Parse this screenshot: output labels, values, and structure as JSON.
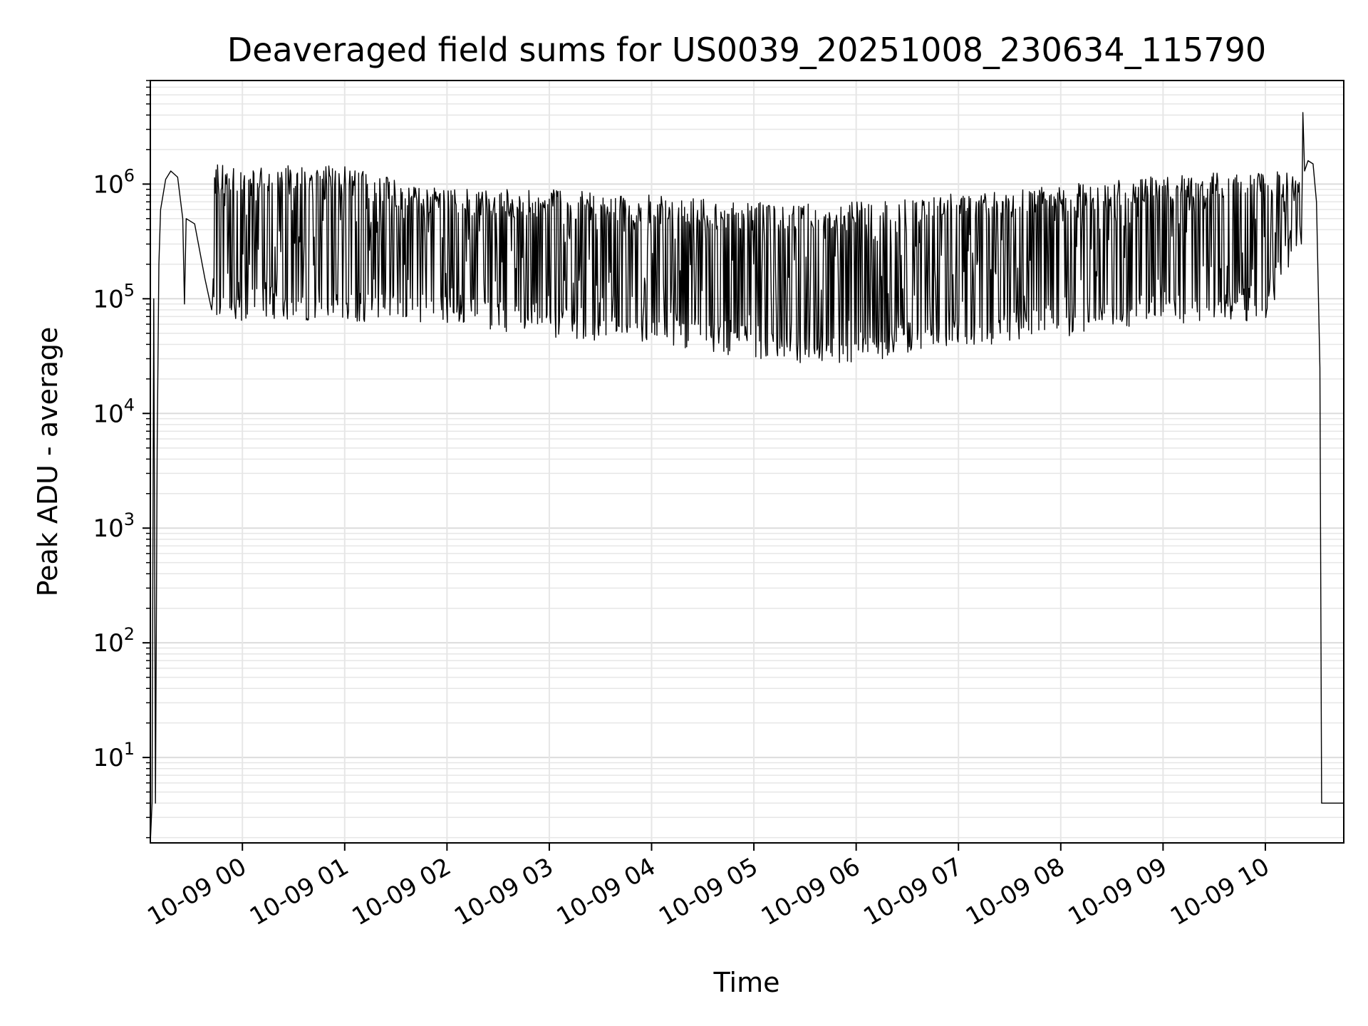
{
  "chart_data": {
    "type": "line",
    "title": "Deaveraged field sums for US0039_20251008_230634_115790",
    "xlabel": "Time",
    "ylabel": "Peak ADU - average",
    "yscale": "log",
    "ylim": [
      1.8,
      8000000
    ],
    "xlim": [
      "2025-10-08 23:06",
      "2025-10-09 10:46"
    ],
    "grid": true,
    "x_ticks": [
      {
        "label": "10-09 00",
        "time": "2025-10-09 00:00"
      },
      {
        "label": "10-09 01",
        "time": "2025-10-09 01:00"
      },
      {
        "label": "10-09 02",
        "time": "2025-10-09 02:00"
      },
      {
        "label": "10-09 03",
        "time": "2025-10-09 03:00"
      },
      {
        "label": "10-09 04",
        "time": "2025-10-09 04:00"
      },
      {
        "label": "10-09 05",
        "time": "2025-10-09 05:00"
      },
      {
        "label": "10-09 06",
        "time": "2025-10-09 06:00"
      },
      {
        "label": "10-09 07",
        "time": "2025-10-09 07:00"
      },
      {
        "label": "10-09 08",
        "time": "2025-10-09 08:00"
      },
      {
        "label": "10-09 09",
        "time": "2025-10-09 09:00"
      },
      {
        "label": "10-09 10",
        "time": "2025-10-09 10:00"
      }
    ],
    "y_ticks": [
      {
        "base": "10",
        "exp": "1",
        "value": 10
      },
      {
        "base": "10",
        "exp": "2",
        "value": 100
      },
      {
        "base": "10",
        "exp": "3",
        "value": 1000
      },
      {
        "base": "10",
        "exp": "4",
        "value": 10000
      },
      {
        "base": "10",
        "exp": "5",
        "value": 100000
      },
      {
        "base": "10",
        "exp": "6",
        "value": 1000000
      }
    ],
    "series": [
      {
        "color": "#000000",
        "envelope": [
          {
            "time": "2025-10-08 23:13",
            "high": 1000000,
            "low": 1000000
          },
          {
            "time": "2025-10-08 23:20",
            "high": 1300000,
            "low": 1100000
          },
          {
            "time": "2025-10-08 23:30",
            "high": 1200000,
            "low": 300000
          },
          {
            "time": "2025-10-08 23:45",
            "high": 1500000,
            "low": 60000
          },
          {
            "time": "2025-10-09 00:00",
            "high": 1400000,
            "low": 65000
          },
          {
            "time": "2025-10-09 00:30",
            "high": 1450000,
            "low": 65000
          },
          {
            "time": "2025-10-09 01:00",
            "high": 1450000,
            "low": 60000
          },
          {
            "time": "2025-10-09 01:30",
            "high": 1100000,
            "low": 65000
          },
          {
            "time": "2025-10-09 02:00",
            "high": 900000,
            "low": 60000
          },
          {
            "time": "2025-10-09 02:30",
            "high": 900000,
            "low": 50000
          },
          {
            "time": "2025-10-09 03:00",
            "high": 900000,
            "low": 45000
          },
          {
            "time": "2025-10-09 03:30",
            "high": 850000,
            "low": 42000
          },
          {
            "time": "2025-10-09 04:00",
            "high": 800000,
            "low": 42000
          },
          {
            "time": "2025-10-09 04:30",
            "high": 750000,
            "low": 35000
          },
          {
            "time": "2025-10-09 05:00",
            "high": 700000,
            "low": 30000
          },
          {
            "time": "2025-10-09 05:30",
            "high": 680000,
            "low": 27000
          },
          {
            "time": "2025-10-09 06:00",
            "high": 700000,
            "low": 28000
          },
          {
            "time": "2025-10-09 06:30",
            "high": 750000,
            "low": 32000
          },
          {
            "time": "2025-10-09 07:00",
            "high": 850000,
            "low": 38000
          },
          {
            "time": "2025-10-09 07:30",
            "high": 900000,
            "low": 40000
          },
          {
            "time": "2025-10-09 08:00",
            "high": 1000000,
            "low": 45000
          },
          {
            "time": "2025-10-09 08:30",
            "high": 1100000,
            "low": 55000
          },
          {
            "time": "2025-10-09 09:00",
            "high": 1200000,
            "low": 60000
          },
          {
            "time": "2025-10-09 09:30",
            "high": 1250000,
            "low": 60000
          },
          {
            "time": "2025-10-09 10:00",
            "high": 1300000,
            "low": 65000
          },
          {
            "time": "2025-10-09 10:20",
            "high": 1300000,
            "low": 300000
          },
          {
            "time": "2025-10-09 10:30",
            "high": 1500000,
            "low": 300000
          }
        ],
        "points": [
          {
            "time": "2025-10-08 23:06",
            "value": 1.8
          },
          {
            "time": "2025-10-08 23:07",
            "value": 4
          },
          {
            "time": "2025-10-08 23:08",
            "value": 100000
          },
          {
            "time": "2025-10-08 23:09",
            "value": 4
          },
          {
            "time": "2025-10-08 23:10",
            "value": 5000
          },
          {
            "time": "2025-10-08 23:11",
            "value": 200000
          },
          {
            "time": "2025-10-08 23:12",
            "value": 600000
          },
          {
            "time": "2025-10-08 23:15",
            "value": 1100000
          },
          {
            "time": "2025-10-08 23:18",
            "value": 1300000
          },
          {
            "time": "2025-10-08 23:22",
            "value": 1150000
          },
          {
            "time": "2025-10-08 23:25",
            "value": 500000
          },
          {
            "time": "2025-10-08 23:26",
            "value": 90000
          },
          {
            "time": "2025-10-08 23:27",
            "value": 500000
          },
          {
            "time": "2025-10-08 23:32",
            "value": 450000
          },
          {
            "time": "2025-10-08 23:38",
            "value": 150000
          },
          {
            "time": "2025-10-08 23:42",
            "value": 80000
          },
          {
            "time": "2025-10-09 10:22",
            "value": 4200000
          },
          {
            "time": "2025-10-09 10:23",
            "value": 1300000
          },
          {
            "time": "2025-10-09 10:25",
            "value": 1600000
          },
          {
            "time": "2025-10-09 10:28",
            "value": 1500000
          },
          {
            "time": "2025-10-09 10:30",
            "value": 700000
          },
          {
            "time": "2025-10-09 10:32",
            "value": 25000
          },
          {
            "time": "2025-10-09 10:33",
            "value": 4
          },
          {
            "time": "2025-10-09 10:46",
            "value": 4
          }
        ]
      }
    ]
  }
}
